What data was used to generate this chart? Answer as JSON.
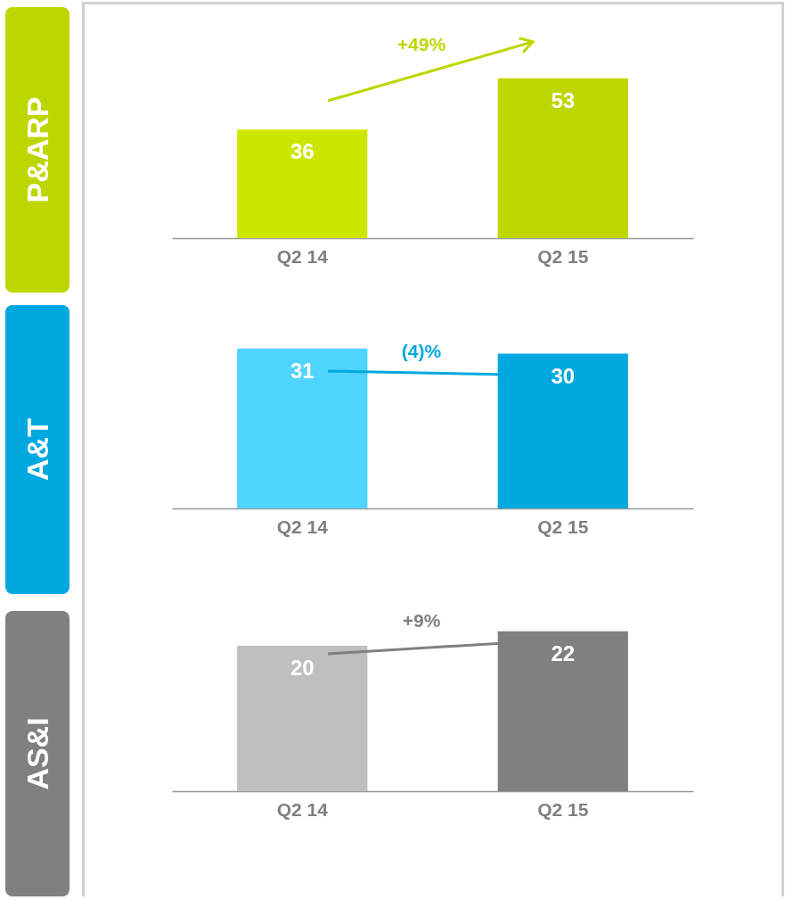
{
  "chart_data": [
    {
      "type": "bar",
      "title": "P&ARP",
      "categories": [
        "Q2 14",
        "Q2 15"
      ],
      "values": [
        36,
        53
      ],
      "colors": [
        "#cde600",
        "#bed600"
      ],
      "data_labels": true,
      "annotations": [
        "+49%"
      ]
    },
    {
      "type": "bar",
      "title": "A&T",
      "categories": [
        "Q2 14",
        "Q2 15"
      ],
      "values": [
        31,
        30
      ],
      "colors": [
        "#4fd3ff",
        "#00a8e0"
      ],
      "data_labels": true,
      "annotations": [
        "(4)%"
      ]
    },
    {
      "type": "bar",
      "title": "AS&I",
      "categories": [
        "Q2 14",
        "Q2 15"
      ],
      "values": [
        20,
        22
      ],
      "colors": [
        "#bfbfbf",
        "#808080"
      ],
      "data_labels": true,
      "annotations": [
        "+9%"
      ]
    }
  ]
}
